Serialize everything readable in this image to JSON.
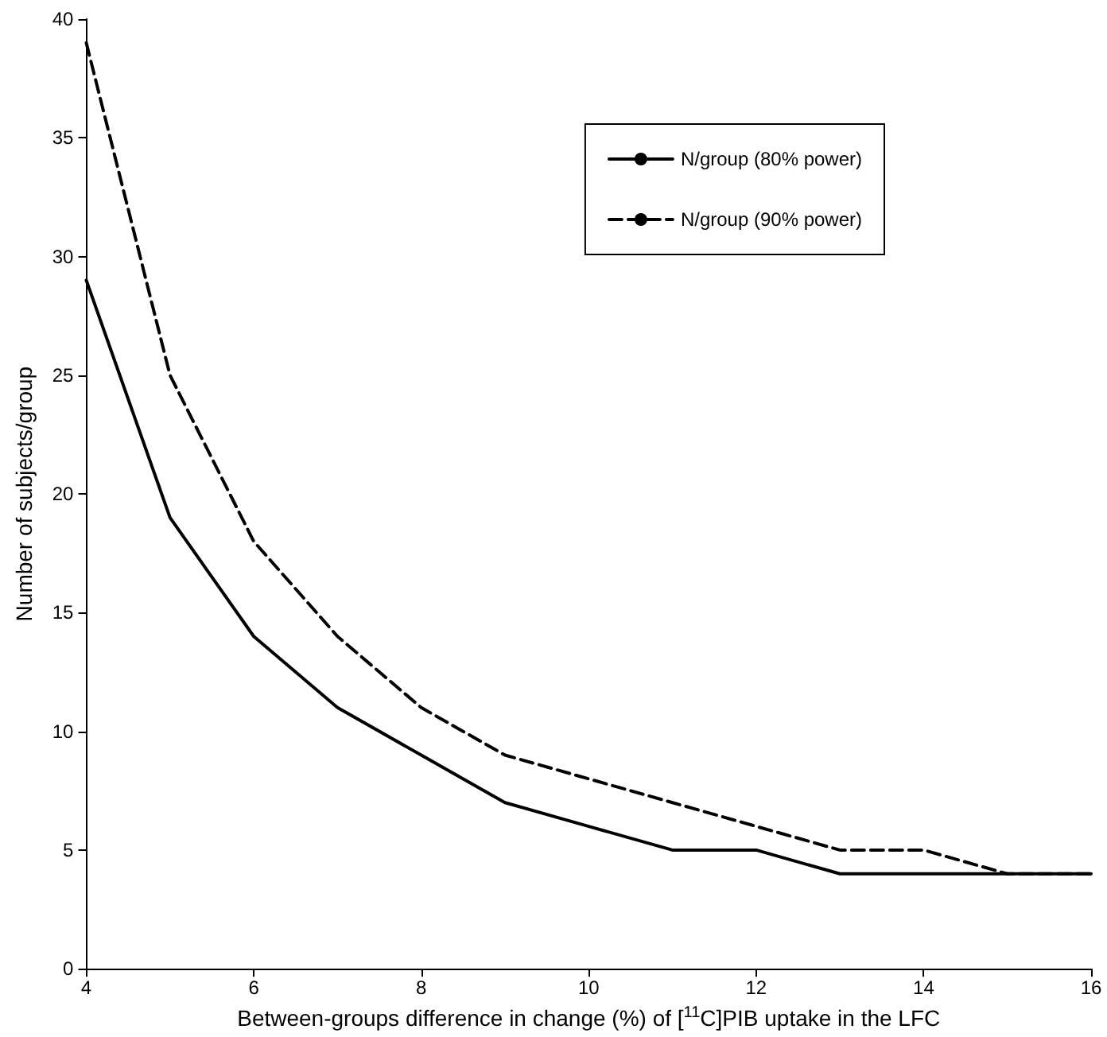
{
  "chart_data": {
    "type": "line",
    "xlabel": "Between-groups difference in change (%) of [$^{11}$C]PIB uptake in the LFC",
    "ylabel": "Number of subjects/group",
    "x": [
      4,
      5,
      6,
      7,
      8,
      9,
      10,
      11,
      12,
      13,
      14,
      15,
      16
    ],
    "series": [
      {
        "name": "N/group (80% power)",
        "color": "#000000",
        "line_style": "solid",
        "values": [
          29,
          19,
          14,
          11,
          9,
          7,
          6,
          5,
          5,
          4,
          4,
          4,
          4
        ]
      },
      {
        "name": "N/group (90% power)",
        "color": "#000000",
        "line_style": "dashed",
        "values": [
          39,
          25,
          18,
          14,
          11,
          9,
          8,
          7,
          6,
          5,
          5,
          4,
          4
        ]
      }
    ],
    "xlim": [
      4,
      16
    ],
    "xticks": [
      4,
      6,
      8,
      10,
      12,
      14,
      16
    ],
    "ylim": [
      0,
      40
    ],
    "yticks": [
      0,
      5,
      10,
      15,
      20,
      25,
      30,
      35,
      40
    ],
    "grid": false,
    "legend": "top right",
    "marker": "none"
  }
}
